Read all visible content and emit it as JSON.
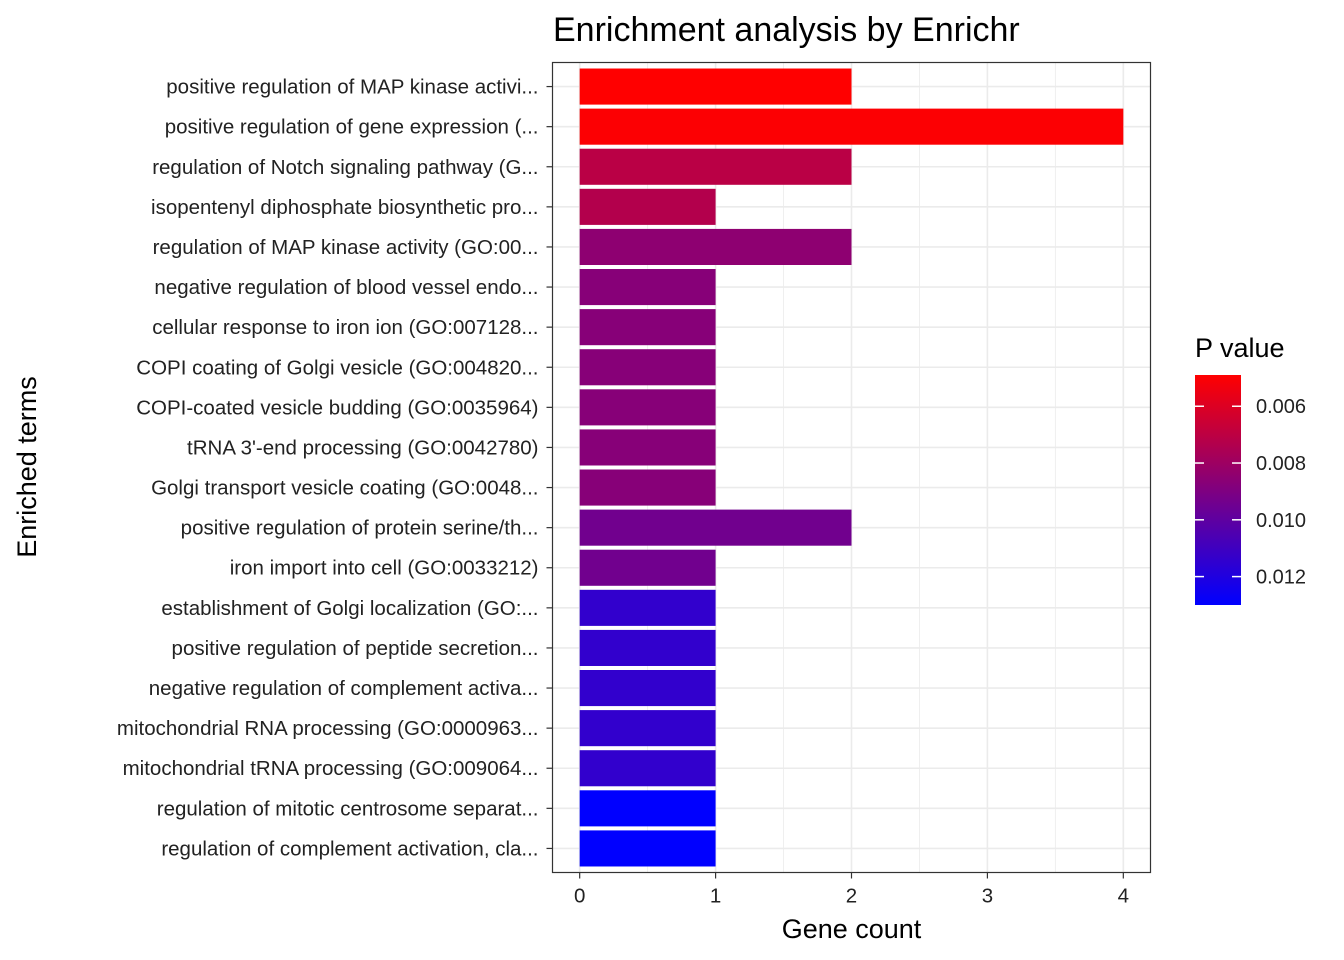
{
  "chart_data": {
    "type": "bar",
    "orientation": "horizontal",
    "title": "Enrichment analysis by Enrichr",
    "xlabel": "Gene count",
    "ylabel": "Enriched terms",
    "xlim": [
      -0.2,
      4.2
    ],
    "x_ticks": [
      "0",
      "1",
      "2",
      "3",
      "4"
    ],
    "grid": true,
    "categories": [
      "positive regulation of MAP kinase activi...",
      "positive regulation of gene expression (...",
      "regulation of Notch signaling pathway (G...",
      "isopentenyl diphosphate biosynthetic pro...",
      "regulation of MAP kinase activity (GO:00...",
      "negative regulation of blood vessel endo...",
      "cellular response to iron ion (GO:007128...",
      "COPI coating of Golgi vesicle (GO:004820...",
      "COPI-coated vesicle budding (GO:0035964)",
      "tRNA 3'-end processing (GO:0042780)",
      "Golgi transport vesicle coating (GO:0048...",
      "positive regulation of protein serine/th...",
      "iron import into cell (GO:0033212)",
      "establishment of Golgi localization (GO:...",
      "positive regulation of peptide secretion...",
      "negative regulation of complement activa...",
      "mitochondrial RNA processing (GO:0000963...",
      "mitochondrial tRNA processing (GO:009064...",
      "regulation of mitotic centrosome separat...",
      "regulation of complement activation, cla..."
    ],
    "values": [
      2,
      4,
      2,
      1,
      2,
      1,
      1,
      1,
      1,
      1,
      1,
      2,
      1,
      1,
      1,
      1,
      1,
      1,
      1,
      1
    ],
    "pvalues": [
      0.0049,
      0.005,
      0.0071,
      0.0073,
      0.0085,
      0.0087,
      0.0087,
      0.0087,
      0.0087,
      0.0087,
      0.0087,
      0.0094,
      0.0094,
      0.0114,
      0.0114,
      0.0114,
      0.0114,
      0.0114,
      0.013,
      0.013
    ],
    "legend": {
      "title": "P value",
      "position": "right",
      "range": [
        0.0049,
        0.013
      ],
      "ticks": [
        0.006,
        0.008,
        0.01,
        0.012
      ],
      "tick_labels": [
        "0.006",
        "0.008",
        "0.010",
        "0.012"
      ],
      "low_color": "#ff0000",
      "high_color": "#0000ff"
    }
  }
}
